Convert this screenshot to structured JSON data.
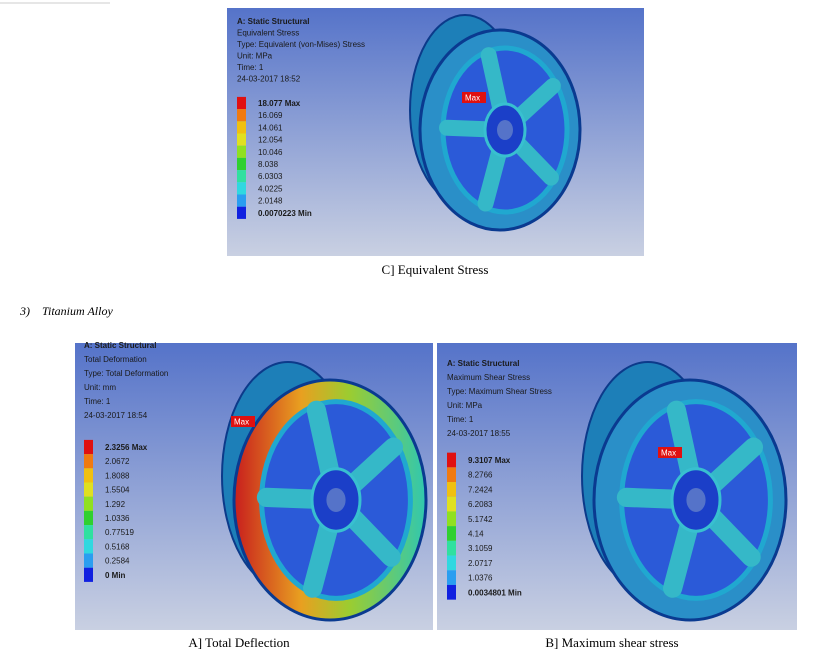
{
  "figure_c": {
    "header": [
      "A: Static Structural",
      "Equivalent Stress",
      "Type: Equivalent (von-Mises) Stress",
      "Unit: MPa",
      "Time: 1",
      "24-03-2017 18:52"
    ],
    "legend": [
      "18.077 Max",
      "16.069",
      "14.061",
      "12.054",
      "10.046",
      "8.038",
      "6.0303",
      "4.0225",
      "2.0148",
      "0.0070223 Min"
    ],
    "max_tag": "Max",
    "caption": "C] Equivalent Stress"
  },
  "section_heading": "3)    Titanium Alloy",
  "figure_a": {
    "header": [
      "A: Static Structural",
      "Total Deformation",
      "Type: Total Deformation",
      "Unit: mm",
      "Time: 1",
      "24-03-2017 18:54"
    ],
    "legend": [
      "2.3256 Max",
      "2.0672",
      "1.8088",
      "1.5504",
      "1.292",
      "1.0336",
      "0.77519",
      "0.5168",
      "0.2584",
      "0 Min"
    ],
    "max_tag": "Max",
    "caption": "A] Total Deflection"
  },
  "figure_b": {
    "header": [
      "A: Static Structural",
      "Maximum Shear Stress",
      "Type: Maximum Shear Stress",
      "Unit: MPa",
      "Time: 1",
      "24-03-2017 18:55"
    ],
    "legend": [
      "9.3107 Max",
      "8.2766",
      "7.2424",
      "6.2083",
      "5.1742",
      "4.14",
      "3.1059",
      "2.0717",
      "1.0376",
      "0.0034801 Min"
    ],
    "max_tag": "Max",
    "caption": "B] Maximum shear stress"
  }
}
